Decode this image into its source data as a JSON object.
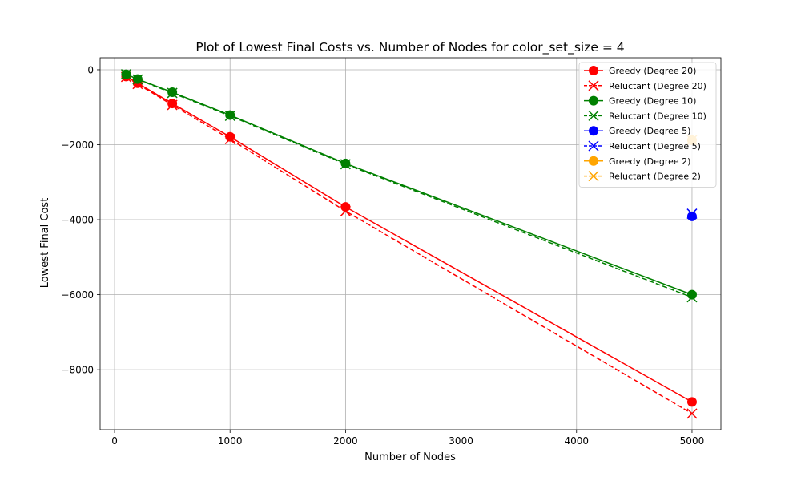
{
  "chart_data": {
    "type": "line",
    "title": "Plot of Lowest Final Costs vs. Number of Nodes for color_set_size = 4",
    "xlabel": "Number of Nodes",
    "ylabel": "Lowest Final Cost",
    "xlim": [
      -125,
      5250
    ],
    "ylim": [
      -9600,
      320
    ],
    "x_ticks": [
      0,
      1000,
      2000,
      3000,
      4000,
      5000
    ],
    "x_tick_labels": [
      "0",
      "1000",
      "2000",
      "3000",
      "4000",
      "5000"
    ],
    "y_ticks": [
      0,
      -2000,
      -4000,
      -6000,
      -8000
    ],
    "y_tick_labels": [
      "0",
      "−2000",
      "−4000",
      "−6000",
      "−8000"
    ],
    "grid": true,
    "legend_position": "top-right",
    "series": [
      {
        "name": "Greedy (Degree 20)",
        "color": "#ff0000",
        "linestyle": "solid",
        "marker": "circle",
        "x": [
          100,
          200,
          500,
          1000,
          2000,
          5000
        ],
        "y": [
          -180,
          -360,
          -900,
          -1790,
          -3660,
          -8860
        ]
      },
      {
        "name": "Reluctant (Degree 20)",
        "color": "#ff0000",
        "linestyle": "dashed",
        "marker": "x",
        "x": [
          100,
          200,
          500,
          1000,
          2000,
          5000
        ],
        "y": [
          -190,
          -380,
          -940,
          -1850,
          -3770,
          -9170
        ]
      },
      {
        "name": "Greedy (Degree 10)",
        "color": "#008000",
        "linestyle": "solid",
        "marker": "circle",
        "x": [
          100,
          200,
          500,
          1000,
          2000,
          5000
        ],
        "y": [
          -120,
          -250,
          -600,
          -1210,
          -2500,
          -6000
        ]
      },
      {
        "name": "Reluctant (Degree 10)",
        "color": "#008000",
        "linestyle": "dashed",
        "marker": "x",
        "x": [
          100,
          200,
          500,
          1000,
          2000,
          5000
        ],
        "y": [
          -120,
          -260,
          -620,
          -1230,
          -2520,
          -6070
        ]
      },
      {
        "name": "Greedy (Degree 5)",
        "color": "#0000ff",
        "linestyle": "solid",
        "marker": "circle",
        "x": [
          5000
        ],
        "y": [
          -3910
        ]
      },
      {
        "name": "Reluctant (Degree 5)",
        "color": "#0000ff",
        "linestyle": "dashed",
        "marker": "x",
        "x": [
          5000
        ],
        "y": [
          -3840
        ]
      },
      {
        "name": "Greedy (Degree 2)",
        "color": "#ffa500",
        "linestyle": "solid",
        "marker": "circle",
        "x": [
          5000
        ],
        "y": [
          -1880
        ]
      },
      {
        "name": "Reluctant (Degree 2)",
        "color": "#ffa500",
        "linestyle": "dashed",
        "marker": "x",
        "x": [
          5000
        ],
        "y": [
          -1880
        ]
      }
    ]
  }
}
